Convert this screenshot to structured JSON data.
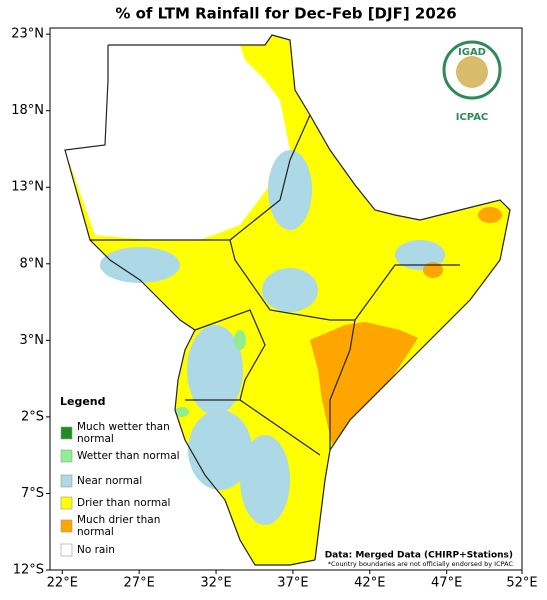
{
  "title": "% of LTM Rainfall for Dec-Feb [DJF] 2026",
  "map": {
    "xlim": [
      21.2,
      51.9
    ],
    "ylim": [
      -12,
      23.4
    ],
    "xticks": [
      {
        "value": 22,
        "label": "22°E"
      },
      {
        "value": 27,
        "label": "27°E"
      },
      {
        "value": 32,
        "label": "32°E"
      },
      {
        "value": 37,
        "label": "37°E"
      },
      {
        "value": 42,
        "label": "42°E"
      },
      {
        "value": 47,
        "label": "47°E"
      },
      {
        "value": 52,
        "label": "52°E"
      }
    ],
    "yticks": [
      {
        "value": 23,
        "label": "23°N"
      },
      {
        "value": 18,
        "label": "18°N"
      },
      {
        "value": 13,
        "label": "13°N"
      },
      {
        "value": 8,
        "label": "8°N"
      },
      {
        "value": 3,
        "label": "3°N"
      },
      {
        "value": -2,
        "label": "2°S"
      },
      {
        "value": -7,
        "label": "7°S"
      },
      {
        "value": -12,
        "label": "12°S"
      }
    ]
  },
  "legend": {
    "title": "Legend",
    "items": [
      {
        "label": "Much wetter than normal",
        "color": "#228b22"
      },
      {
        "label": "Wetter than normal",
        "color": "#90ee90"
      },
      {
        "label": "Near normal",
        "color": "#add8e6"
      },
      {
        "label": "Drier than normal",
        "color": "#ffff00"
      },
      {
        "label": "Much drier than normal",
        "color": "#ffa500"
      },
      {
        "label": "No rain",
        "color": "#ffffff"
      }
    ]
  },
  "logo": {
    "name": "IGAD",
    "org": "ICPAC"
  },
  "source": "Data: Merged Data (CHIRP+Stations)",
  "disclaimer": "*Country boundaries are not officially endorsed by ICPAC"
}
